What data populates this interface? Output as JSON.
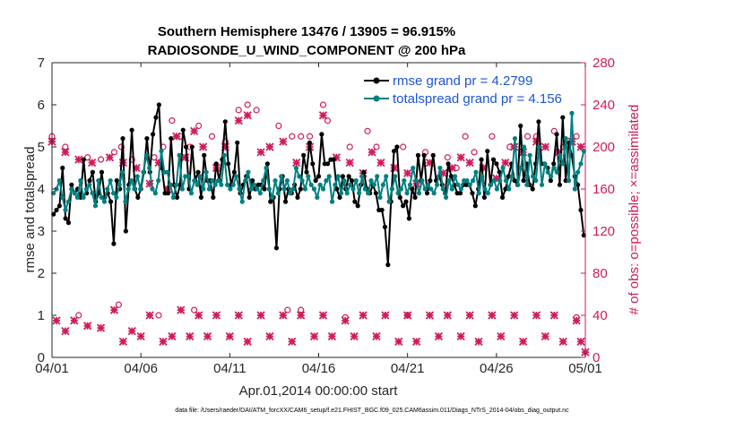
{
  "chart_data": {
    "type": "line",
    "title_line1": "Southern Hemisphere 13476 / 13905 = 96.915%",
    "title_line2": "RADIOSONDE_U_WIND_COMPONENT @ 200 hPa",
    "xlabel": "Apr.01,2014 00:00:00 start",
    "ylabel_left": "rmse and totalspread",
    "ylabel_right": "# of obs: o=possible; ×=assimilated",
    "footer": "data file: /Users/raeder/DAI/ATM_forcXX/CAM6_setup/f.e21.FHIST_BGC.f09_025.CAM6assim.011/Diags_NTrS_2014-04/obs_diag_output.nc",
    "x_range_days": [
      0,
      30
    ],
    "ylim_left": [
      0,
      7
    ],
    "ylim_right": [
      0,
      280
    ],
    "x_ticks": [
      {
        "day": 0,
        "label": "04/01"
      },
      {
        "day": 5,
        "label": "04/06"
      },
      {
        "day": 10,
        "label": "04/11"
      },
      {
        "day": 15,
        "label": "04/16"
      },
      {
        "day": 20,
        "label": "04/21"
      },
      {
        "day": 25,
        "label": "04/26"
      },
      {
        "day": 30,
        "label": "05/01"
      }
    ],
    "y_ticks_left": [
      "0",
      "1",
      "2",
      "3",
      "4",
      "5",
      "6",
      "7"
    ],
    "y_ticks_right": [
      "0",
      "40",
      "80",
      "120",
      "160",
      "200",
      "240",
      "280"
    ],
    "colors": {
      "rmse": "#000000",
      "spread": "#008080",
      "obs": "#d11a5d",
      "legend_text": "#1c55d6"
    },
    "series": [
      {
        "name": "rmse grand pr = 4.2799",
        "axis": "left",
        "values": [
          3.4,
          3.5,
          3.6,
          4.5,
          3.3,
          3.2,
          4.1,
          3.9,
          4.0,
          3.8,
          4.7,
          3.9,
          4.2,
          4.4,
          3.7,
          3.9,
          4.4,
          3.8,
          3.9,
          3.7,
          2.7,
          4.2,
          4.0,
          5.2,
          3.0,
          4.1,
          5.4,
          4.0,
          3.8,
          4.0,
          4.4,
          5.2,
          4.4,
          5.3,
          5.7,
          6.0,
          4.5,
          3.9,
          3.9,
          5.2,
          4.1,
          3.8,
          4.1,
          5.4,
          5.0,
          4.0,
          5.0,
          4.2,
          4.4,
          3.8,
          4.8,
          4.2,
          4.2,
          3.8,
          4.6,
          4.2,
          4.7,
          5.6,
          4.6,
          4.1,
          4.4,
          5.1,
          3.9,
          4.1,
          4.3,
          3.8,
          4.2,
          4.0,
          4.1,
          4.1,
          4.0,
          4.6,
          3.7,
          3.8,
          2.6,
          4.0,
          4.3,
          3.7,
          4.0,
          3.9,
          4.1,
          3.8,
          4.0,
          4.8,
          4.4,
          5.1,
          4.6,
          4.2,
          4.3,
          5.3,
          4.6,
          4.6,
          4.7,
          4.7,
          4.0,
          3.8,
          4.3,
          4.0,
          4.3,
          4.2,
          3.7,
          3.6,
          4.1,
          4.4,
          4.0,
          3.9,
          4.1,
          3.9,
          3.5,
          3.5,
          3.1,
          2.2,
          3.7,
          4.9,
          5.0,
          3.8,
          3.6,
          3.7,
          3.3,
          4.0,
          3.8,
          4.8,
          4.2,
          4.8,
          3.9,
          4.2,
          4.8,
          4.2,
          4.3,
          4.1,
          3.9,
          4.6,
          4.3,
          4.1,
          3.9,
          3.9,
          4.1,
          4.1,
          4.1,
          3.9,
          3.6,
          4.0,
          4.7,
          3.8,
          4.9,
          4.1,
          4.7,
          4.6,
          4.4,
          3.8,
          4.0,
          4.3,
          4.6,
          4.2,
          4.1,
          5.5,
          4.2,
          4.6,
          4.1,
          4.0,
          4.6,
          5.6,
          4.6,
          4.6,
          4.5,
          4.2,
          4.6,
          5.3,
          4.1,
          5.7,
          4.2,
          5.1,
          4.8,
          4.3,
          4.1,
          3.5,
          2.9
        ]
      },
      {
        "name": "totalspread grand pr = 4.156",
        "axis": "left",
        "values": [
          3.9,
          4.0,
          4.2,
          3.8,
          3.5,
          3.7,
          4.0,
          3.9,
          3.8,
          4.2,
          3.8,
          4.0,
          4.1,
          3.9,
          3.6,
          4.2,
          3.8,
          3.7,
          4.0,
          4.2,
          3.9,
          3.8,
          4.1,
          4.4,
          3.7,
          4.0,
          4.2,
          4.0,
          4.3,
          4.0,
          4.4,
          4.8,
          4.5,
          4.0,
          3.9,
          4.2,
          4.9,
          4.4,
          4.4,
          4.1,
          3.8,
          4.1,
          4.8,
          4.0,
          4.3,
          4.3,
          3.9,
          4.2,
          4.1,
          4.3,
          4.0,
          4.4,
          4.0,
          4.2,
          4.1,
          4.2,
          4.1,
          4.8,
          4.1,
          4.0,
          4.1,
          4.3,
          4.0,
          3.7,
          4.2,
          4.4,
          4.0,
          4.1,
          4.0,
          3.9,
          4.2,
          4.5,
          4.0,
          3.8,
          4.2,
          3.9,
          4.3,
          4.0,
          4.2,
          3.9,
          4.0,
          4.5,
          4.3,
          4.2,
          4.0,
          4.3,
          4.1,
          4.0,
          3.8,
          4.1,
          4.0,
          4.2,
          4.3,
          3.7,
          4.1,
          4.3,
          3.9,
          4.2,
          3.9,
          4.1,
          4.0,
          4.2,
          3.9,
          4.3,
          4.0,
          3.9,
          4.2,
          4.1,
          4.3,
          3.8,
          4.1,
          4.3,
          3.7,
          4.0,
          4.3,
          3.9,
          4.0,
          4.2,
          3.9,
          4.1,
          4.5,
          4.2,
          3.9,
          4.2,
          4.0,
          4.1,
          4.0,
          3.9,
          4.1,
          4.5,
          4.0,
          3.8,
          4.2,
          4.0,
          4.3,
          4.1,
          4.0,
          4.2,
          4.2,
          4.1,
          4.2,
          4.4,
          3.9,
          4.3,
          4.0,
          3.9,
          4.1,
          4.2,
          4.0,
          4.2,
          4.5,
          4.2,
          4.0,
          4.3,
          5.2,
          4.1,
          4.5,
          5.0,
          4.1,
          4.8,
          4.3,
          4.2,
          5.0,
          4.1,
          4.6,
          4.4,
          4.3,
          4.5,
          4.4,
          4.8,
          4.6,
          5.2,
          4.2,
          5.8,
          4.0,
          4.4,
          4.6,
          4.9
        ]
      }
    ],
    "obs_possible": [
      {
        "day": 0.0,
        "obs": 210
      },
      {
        "day": 0.75,
        "obs": 200
      },
      {
        "day": 2.0,
        "obs": 190
      },
      {
        "day": 2.75,
        "obs": 188
      },
      {
        "day": 3.5,
        "obs": 195
      },
      {
        "day": 3.9,
        "obs": 200
      },
      {
        "day": 4.5,
        "obs": 188
      },
      {
        "day": 5.75,
        "obs": 190
      },
      {
        "day": 6.25,
        "obs": 200
      },
      {
        "day": 6.75,
        "obs": 225
      },
      {
        "day": 7.25,
        "obs": 210
      },
      {
        "day": 7.75,
        "obs": 200
      },
      {
        "day": 8.25,
        "obs": 220
      },
      {
        "day": 9.0,
        "obs": 210
      },
      {
        "day": 9.75,
        "obs": 205
      },
      {
        "day": 10.5,
        "obs": 235
      },
      {
        "day": 11.0,
        "obs": 240
      },
      {
        "day": 11.5,
        "obs": 235
      },
      {
        "day": 12.75,
        "obs": 220
      },
      {
        "day": 13.5,
        "obs": 210
      },
      {
        "day": 14.0,
        "obs": 210
      },
      {
        "day": 14.5,
        "obs": 210
      },
      {
        "day": 15.25,
        "obs": 240
      },
      {
        "day": 15.5,
        "obs": 225
      },
      {
        "day": 16.75,
        "obs": 200
      },
      {
        "day": 17.75,
        "obs": 215
      },
      {
        "day": 18.25,
        "obs": 200
      },
      {
        "day": 19.75,
        "obs": 200
      },
      {
        "day": 21.0,
        "obs": 195
      },
      {
        "day": 22.25,
        "obs": 190
      },
      {
        "day": 22.75,
        "obs": 180
      },
      {
        "day": 23.25,
        "obs": 210
      },
      {
        "day": 23.75,
        "obs": 195
      },
      {
        "day": 24.75,
        "obs": 210
      },
      {
        "day": 25.75,
        "obs": 200
      },
      {
        "day": 26.75,
        "obs": 210
      },
      {
        "day": 27.25,
        "obs": 210
      },
      {
        "day": 28.25,
        "obs": 215
      },
      {
        "day": 28.75,
        "obs": 200
      },
      {
        "day": 29.5,
        "obs": 210
      },
      {
        "day": 1.5,
        "obs": 40
      },
      {
        "day": 3.75,
        "obs": 50
      },
      {
        "day": 6.0,
        "obs": 40
      },
      {
        "day": 8.0,
        "obs": 45
      },
      {
        "day": 13.25,
        "obs": 45
      },
      {
        "day": 14.0,
        "obs": 45
      },
      {
        "day": 16.5,
        "obs": 38
      },
      {
        "day": 20.0,
        "obs": 40
      },
      {
        "day": 29.5,
        "obs": 38
      }
    ],
    "obs_assimilated": [
      {
        "day": 0.0,
        "obs": 205
      },
      {
        "day": 0.75,
        "obs": 195
      },
      {
        "day": 1.5,
        "obs": 188
      },
      {
        "day": 2.25,
        "obs": 185
      },
      {
        "day": 3.25,
        "obs": 190
      },
      {
        "day": 4.0,
        "obs": 185
      },
      {
        "day": 4.75,
        "obs": 180
      },
      {
        "day": 5.5,
        "obs": 165
      },
      {
        "day": 6.0,
        "obs": 185
      },
      {
        "day": 6.5,
        "obs": 160
      },
      {
        "day": 7.0,
        "obs": 210
      },
      {
        "day": 7.5,
        "obs": 190
      },
      {
        "day": 8.0,
        "obs": 215
      },
      {
        "day": 8.5,
        "obs": 200
      },
      {
        "day": 9.25,
        "obs": 180
      },
      {
        "day": 9.75,
        "obs": 200
      },
      {
        "day": 10.5,
        "obs": 225
      },
      {
        "day": 11.0,
        "obs": 230
      },
      {
        "day": 11.75,
        "obs": 195
      },
      {
        "day": 12.25,
        "obs": 200
      },
      {
        "day": 13.0,
        "obs": 205
      },
      {
        "day": 13.75,
        "obs": 185
      },
      {
        "day": 14.5,
        "obs": 200
      },
      {
        "day": 15.25,
        "obs": 230
      },
      {
        "day": 16.0,
        "obs": 190
      },
      {
        "day": 16.75,
        "obs": 185
      },
      {
        "day": 17.5,
        "obs": 175
      },
      {
        "day": 18.0,
        "obs": 195
      },
      {
        "day": 18.5,
        "obs": 185
      },
      {
        "day": 19.25,
        "obs": 180
      },
      {
        "day": 20.0,
        "obs": 175
      },
      {
        "day": 20.5,
        "obs": 165
      },
      {
        "day": 21.25,
        "obs": 185
      },
      {
        "day": 22.0,
        "obs": 175
      },
      {
        "day": 22.5,
        "obs": 180
      },
      {
        "day": 23.0,
        "obs": 190
      },
      {
        "day": 23.5,
        "obs": 185
      },
      {
        "day": 24.25,
        "obs": 180
      },
      {
        "day": 25.0,
        "obs": 170
      },
      {
        "day": 25.5,
        "obs": 185
      },
      {
        "day": 26.0,
        "obs": 200
      },
      {
        "day": 26.5,
        "obs": 195
      },
      {
        "day": 27.25,
        "obs": 205
      },
      {
        "day": 27.75,
        "obs": 200
      },
      {
        "day": 28.5,
        "obs": 195
      },
      {
        "day": 29.25,
        "obs": 205
      },
      {
        "day": 29.75,
        "obs": 200
      },
      {
        "day": 0.25,
        "obs": 35
      },
      {
        "day": 0.75,
        "obs": 25
      },
      {
        "day": 1.25,
        "obs": 35
      },
      {
        "day": 2.0,
        "obs": 30
      },
      {
        "day": 2.75,
        "obs": 28
      },
      {
        "day": 3.5,
        "obs": 45
      },
      {
        "day": 4.0,
        "obs": 15
      },
      {
        "day": 4.5,
        "obs": 25
      },
      {
        "day": 5.0,
        "obs": 20
      },
      {
        "day": 5.5,
        "obs": 40
      },
      {
        "day": 6.25,
        "obs": 15
      },
      {
        "day": 6.75,
        "obs": 20
      },
      {
        "day": 7.25,
        "obs": 45
      },
      {
        "day": 7.75,
        "obs": 20
      },
      {
        "day": 8.25,
        "obs": 40
      },
      {
        "day": 8.75,
        "obs": 20
      },
      {
        "day": 9.25,
        "obs": 40
      },
      {
        "day": 10.0,
        "obs": 20
      },
      {
        "day": 10.5,
        "obs": 40
      },
      {
        "day": 11.0,
        "obs": 15
      },
      {
        "day": 11.75,
        "obs": 40
      },
      {
        "day": 12.25,
        "obs": 20
      },
      {
        "day": 13.0,
        "obs": 40
      },
      {
        "day": 13.5,
        "obs": 15
      },
      {
        "day": 14.0,
        "obs": 40
      },
      {
        "day": 14.75,
        "obs": 20
      },
      {
        "day": 15.25,
        "obs": 40
      },
      {
        "day": 15.75,
        "obs": 20
      },
      {
        "day": 16.5,
        "obs": 35
      },
      {
        "day": 17.0,
        "obs": 20
      },
      {
        "day": 17.5,
        "obs": 40
      },
      {
        "day": 18.25,
        "obs": 20
      },
      {
        "day": 18.75,
        "obs": 40
      },
      {
        "day": 19.5,
        "obs": 15
      },
      {
        "day": 20.0,
        "obs": 40
      },
      {
        "day": 20.5,
        "obs": 15
      },
      {
        "day": 21.25,
        "obs": 40
      },
      {
        "day": 21.75,
        "obs": 20
      },
      {
        "day": 22.25,
        "obs": 40
      },
      {
        "day": 23.0,
        "obs": 20
      },
      {
        "day": 23.5,
        "obs": 40
      },
      {
        "day": 24.0,
        "obs": 15
      },
      {
        "day": 24.75,
        "obs": 40
      },
      {
        "day": 25.25,
        "obs": 20
      },
      {
        "day": 26.0,
        "obs": 40
      },
      {
        "day": 26.5,
        "obs": 15
      },
      {
        "day": 27.25,
        "obs": 40
      },
      {
        "day": 27.75,
        "obs": 20
      },
      {
        "day": 28.25,
        "obs": 40
      },
      {
        "day": 28.75,
        "obs": 15
      },
      {
        "day": 29.5,
        "obs": 35
      },
      {
        "day": 29.75,
        "obs": 15
      },
      {
        "day": 30.0,
        "obs": 5
      }
    ]
  }
}
